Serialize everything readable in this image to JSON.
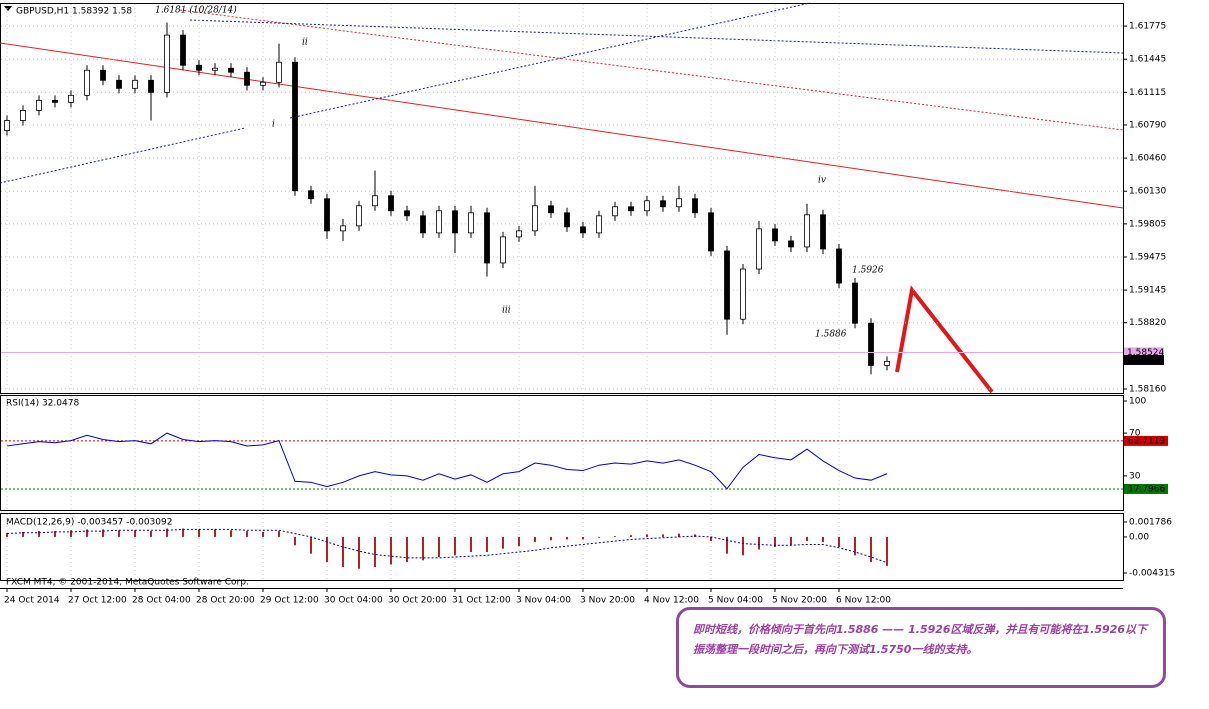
{
  "chart_data": [
    {
      "type": "candlestick",
      "title": "GBPUSD,H1  1.58392 1.58",
      "categories": [
        "24 Oct 2014",
        null,
        null,
        null,
        "27 Oct 12:00",
        null,
        null,
        null,
        "28 Oct 04:00",
        null,
        null,
        null,
        "28 Oct 20:00",
        null,
        null,
        null,
        "29 Oct 12:00",
        null,
        null,
        null,
        "30 Oct 04:00",
        null,
        null,
        null,
        "30 Oct 20:00",
        null,
        null,
        null,
        "31 Oct 12:00",
        null,
        null,
        null,
        "3 Nov 04:00",
        null,
        null,
        null,
        "3 Nov 20:00",
        null,
        null,
        null,
        "4 Nov 12:00",
        null,
        null,
        null,
        "5 Nov 04:00",
        null,
        null,
        null,
        "5 Nov 20:00",
        null,
        null,
        null,
        "6 Nov 12:00",
        null,
        null,
        null
      ],
      "open": [
        1.60735,
        1.60835,
        1.60935,
        1.61035,
        1.61015,
        1.61085,
        1.61335,
        1.61235,
        1.61155,
        1.61235,
        1.61115,
        1.61685,
        1.61385,
        1.61335,
        1.61355,
        1.61315,
        1.61185,
        1.61215,
        1.61415,
        1.60135,
        1.60055,
        1.59735,
        1.59785,
        1.59985,
        1.60085,
        1.59935,
        1.59885,
        1.59715,
        1.59935,
        1.59715,
        1.59915,
        1.59415,
        1.59675,
        1.59735,
        1.59985,
        1.59915,
        1.59775,
        1.59715,
        1.59885,
        1.59975,
        1.59935,
        1.60035,
        1.59975,
        1.60055,
        1.59915,
        1.59535,
        1.58855,
        1.59355,
        1.59755,
        1.59635,
        1.59575,
        1.59895,
        1.59555,
        1.59215,
        1.58815,
        1.58395
      ],
      "high": [
        1.60885,
        1.60985,
        1.61085,
        1.61085,
        1.61135,
        1.61385,
        1.61385,
        1.61285,
        1.61285,
        1.61285,
        1.6181,
        1.61735,
        1.61435,
        1.61405,
        1.61405,
        1.61365,
        1.61265,
        1.616,
        1.61465,
        1.60185,
        1.60105,
        1.59855,
        1.60035,
        1.60335,
        1.60135,
        1.59985,
        1.59935,
        1.59985,
        1.59985,
        1.59985,
        1.59965,
        1.59725,
        1.59785,
        1.60185,
        1.60035,
        1.59965,
        1.59825,
        1.59935,
        1.60025,
        1.60025,
        1.60085,
        1.60085,
        1.60185,
        1.60105,
        1.59965,
        1.59585,
        1.59405,
        1.59835,
        1.59805,
        1.59685,
        1.60005,
        1.59945,
        1.59605,
        1.59265,
        1.58865,
        1.58485
      ],
      "low": [
        1.60685,
        1.60785,
        1.60885,
        1.60965,
        1.60965,
        1.61035,
        1.61185,
        1.61105,
        1.61105,
        1.60835,
        1.61065,
        1.61335,
        1.61285,
        1.61285,
        1.61265,
        1.61135,
        1.61135,
        1.61165,
        1.60085,
        1.60005,
        1.59655,
        1.59635,
        1.59735,
        1.59935,
        1.59885,
        1.59835,
        1.59665,
        1.59665,
        1.59515,
        1.59665,
        1.5928,
        1.59365,
        1.59625,
        1.59685,
        1.59865,
        1.59725,
        1.59665,
        1.59665,
        1.59835,
        1.59885,
        1.59885,
        1.59925,
        1.59925,
        1.59865,
        1.59485,
        1.587,
        1.58805,
        1.59305,
        1.59585,
        1.59525,
        1.59525,
        1.59505,
        1.59165,
        1.58765,
        1.58305,
        1.58345
      ],
      "close": [
        1.60835,
        1.60935,
        1.61035,
        1.61015,
        1.61085,
        1.61335,
        1.61235,
        1.61155,
        1.61235,
        1.61115,
        1.61685,
        1.61385,
        1.61335,
        1.61355,
        1.61315,
        1.61185,
        1.61215,
        1.61415,
        1.60135,
        1.60055,
        1.59735,
        1.59785,
        1.59985,
        1.60085,
        1.59935,
        1.59885,
        1.59715,
        1.59935,
        1.59715,
        1.59915,
        1.59415,
        1.59675,
        1.59735,
        1.59985,
        1.59915,
        1.59775,
        1.59715,
        1.59885,
        1.59975,
        1.59935,
        1.60035,
        1.59975,
        1.60055,
        1.59915,
        1.59535,
        1.58855,
        1.59355,
        1.59755,
        1.59635,
        1.59575,
        1.59895,
        1.59555,
        1.59215,
        1.58815,
        1.58395,
        1.58435
      ],
      "up_color": "#ffffff",
      "down_color": "#000000",
      "ylim": [
        1.5812,
        1.61985
      ],
      "yticks": [
        1.61775,
        1.61445,
        1.61115,
        {
          "value": 1.6079,
          "label": "1.60790"
        },
        {
          "value": 1.6046,
          "label": "1.60460"
        },
        {
          "value": 1.6013,
          "label": "1.60130"
        },
        1.59805,
        1.59475,
        1.59145,
        {
          "value": 1.5882,
          "label": "1.58820"
        },
        {
          "value": 1.5816,
          "label": "1.58160"
        }
      ],
      "grid": true,
      "bid_line": 1.58524,
      "bid_color": "#e6a8e6",
      "last_price": 1.58449,
      "annotations": [
        "1.6181 (10/28/14)",
        "ii",
        "i",
        "iii",
        "iv",
        "1.5926",
        "1.5886"
      ]
    },
    {
      "type": "line",
      "title": "RSI(14) 32.0478",
      "values": [
        58,
        60,
        62,
        61,
        63,
        68,
        64,
        62,
        63,
        60,
        70,
        64,
        62,
        63,
        62,
        58,
        59,
        63,
        25,
        24,
        20,
        24,
        30,
        34,
        31,
        30,
        26,
        32,
        27,
        31,
        24,
        32,
        34,
        42,
        40,
        36,
        35,
        40,
        42,
        41,
        44,
        42,
        45,
        40,
        34,
        18,
        38,
        50,
        47,
        45,
        55,
        44,
        35,
        28,
        26,
        32
      ],
      "color": "#0000cc",
      "ylim": [
        0,
        100
      ],
      "yticks": [
        100,
        70,
        30
      ],
      "levels": [
        {
          "value": 62.7119,
          "color": "#cc0000"
        },
        {
          "value": 17.7966,
          "color": "#007700"
        }
      ]
    },
    {
      "type": "macd",
      "title": "MACD(12,26,9) -0.003457 -0.003092",
      "values": [
        0.0005,
        0.0006,
        0.0007,
        0.0007,
        0.0008,
        0.0009,
        0.0009,
        0.0008,
        0.0008,
        0.0007,
        0.001,
        0.001,
        0.0009,
        0.0009,
        0.0008,
        0.0007,
        0.0006,
        0.0007,
        -0.001,
        -0.002,
        -0.003,
        -0.0036,
        -0.0038,
        -0.0036,
        -0.0033,
        -0.003,
        -0.0028,
        -0.0024,
        -0.0022,
        -0.0018,
        -0.0018,
        -0.0014,
        -0.0011,
        -0.0006,
        -0.0004,
        -0.0003,
        -0.0003,
        -0.0001,
        0.0001,
        0.0002,
        0.0003,
        0.0003,
        0.0004,
        0.0003,
        -0.0005,
        -0.002,
        -0.0022,
        -0.0015,
        -0.0012,
        -0.001,
        -0.0005,
        -0.0006,
        -0.0012,
        -0.0022,
        -0.003,
        -0.003457
      ],
      "signal": [
        0.0004,
        0.0005,
        0.0005,
        0.0006,
        0.0006,
        0.0007,
        0.0007,
        0.0008,
        0.0008,
        0.0008,
        0.0008,
        0.0009,
        0.0009,
        0.0009,
        0.0009,
        0.0008,
        0.0008,
        0.0008,
        0.0004,
        0,
        -0.0006,
        -0.0012,
        -0.0017,
        -0.0021,
        -0.0023,
        -0.0025,
        -0.0025,
        -0.0025,
        -0.0024,
        -0.0023,
        -0.0022,
        -0.002,
        -0.0018,
        -0.0016,
        -0.0013,
        -0.0011,
        -0.0009,
        -0.0007,
        -0.0005,
        -0.0003,
        -0.0002,
        -0.0001,
        0,
        0.0001,
        0,
        -0.0004,
        -0.0008,
        -0.0009,
        -0.001,
        -0.001,
        -0.0009,
        -0.0009,
        -0.0013,
        -0.0018,
        -0.0024,
        -0.003092
      ],
      "color": "#b22222",
      "signal_color": "#0000aa",
      "ylim": [
        -0.004315,
        0.001786
      ],
      "yticks": [
        0.001786,
        {
          "value": 0,
          "label": "0.00"
        },
        -0.004315
      ]
    }
  ],
  "footer": "FXCM MT4, © 2001-2014, MetaQuotes Software Corp.",
  "note": "即时短线，价格倾向于首先向1.5886 —— 1.5926区域反弹，并且有可能将在1.5926以下振荡整理一段时间之后，再向下测试1.5750一线的支持。"
}
